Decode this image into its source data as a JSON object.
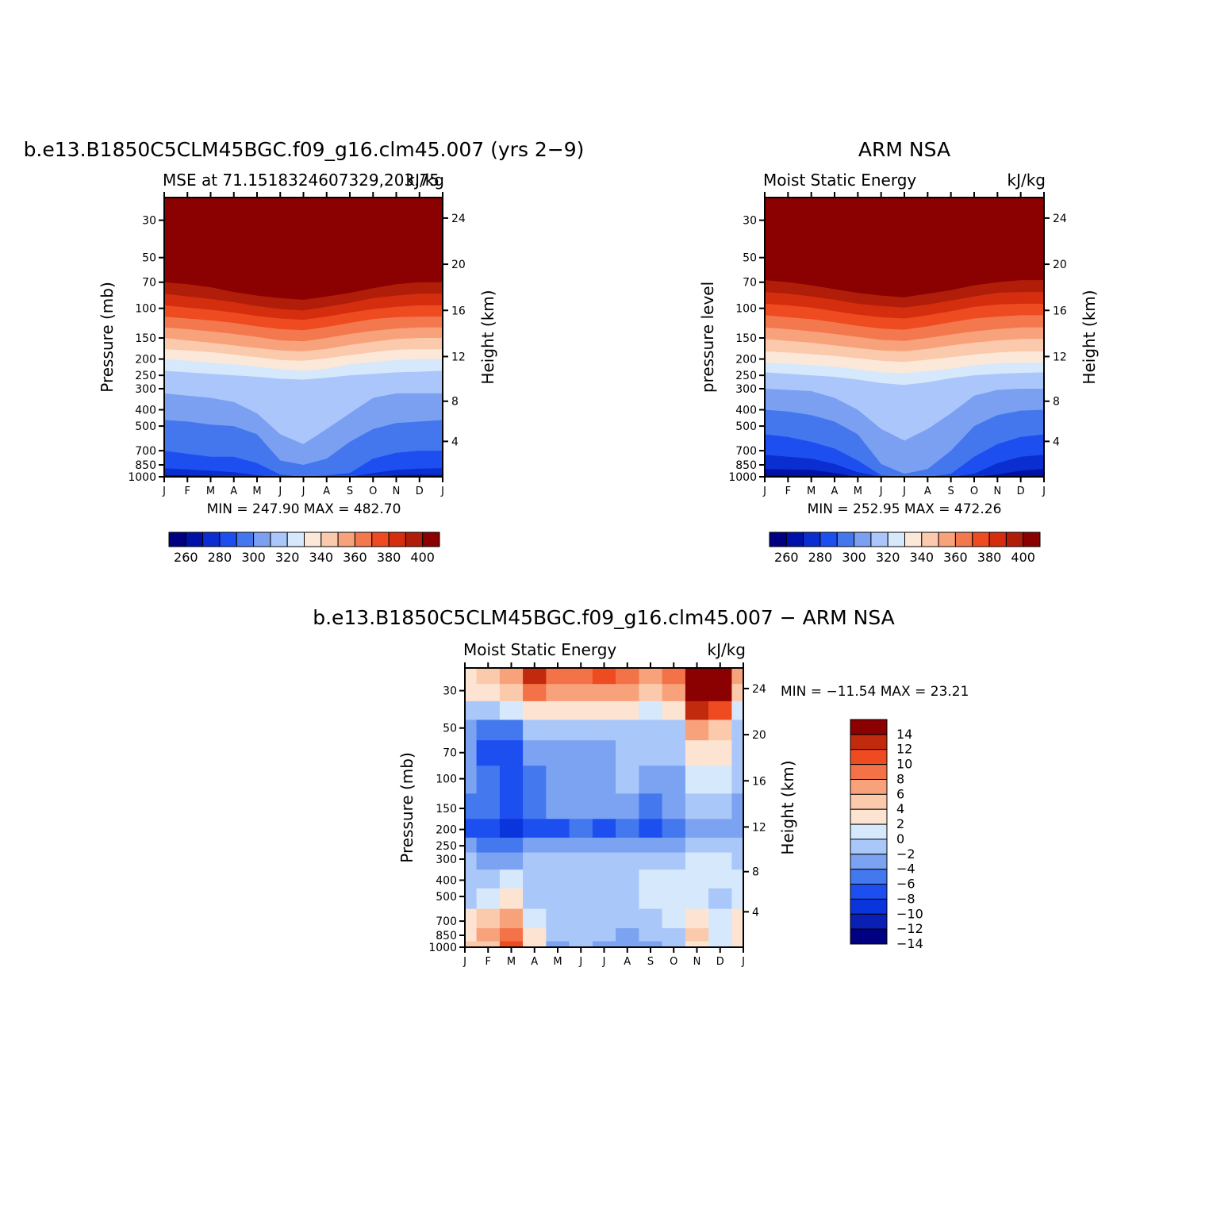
{
  "colors": {
    "mse_levels": [
      "#000080",
      "#0011aa",
      "#0a2ecf",
      "#1d4ff0",
      "#4477ee",
      "#7ba0f2",
      "#aac6fa",
      "#d6e8fb",
      "#fce8d8",
      "#fbc9ac",
      "#f8a27c",
      "#f4784e",
      "#ee4b21",
      "#d42e0e",
      "#b01e0a",
      "#8b0000"
    ],
    "diff_levels": [
      "#000080",
      "#0a1fb4",
      "#0a35dd",
      "#1d4ff0",
      "#4478ee",
      "#7ba3f2",
      "#aac7fa",
      "#d6e8fb",
      "#fde3d2",
      "#fbc9ac",
      "#f8a27c",
      "#f47247",
      "#ee4b21",
      "#c22a0e",
      "#8b0000"
    ]
  },
  "panels": {
    "model": {
      "title": "b.e13.B1850C5CLM45BGC.f09_g16.clm45.007 (yrs 2−9)",
      "left_label": "MSE at 71.1518324607329,203.75",
      "right_label": "kJ/kg",
      "y_label": "Pressure (mb)",
      "y2_label": "Height (km)",
      "minmax": "MIN = 247.90 MAX = 482.70"
    },
    "obs": {
      "title": "ARM NSA",
      "left_label": "Moist Static Energy",
      "right_label": "kJ/kg",
      "y_label": "pressure level",
      "y2_label": "Height (km)",
      "minmax": "MIN = 252.95 MAX = 472.26"
    },
    "diff": {
      "title": "b.e13.B1850C5CLM45BGC.f09_g16.clm45.007 − ARM NSA",
      "left_label": "Moist Static Energy",
      "right_label": "kJ/kg",
      "y_label": "Pressure (mb)",
      "y2_label": "Height (km)",
      "minmax": "MIN = −11.54 MAX =  23.21"
    }
  },
  "chart_data": [
    {
      "type": "heatmap",
      "title": "b.e13.B1850C5CLM45BGC.f09_g16.clm45.007 (yrs 2−9)",
      "subtitle": "MSE at 71.1518324607329,203.75",
      "units": "kJ/kg",
      "xlabel": "",
      "ylabel": "Pressure (mb)",
      "y2label": "Height (km)",
      "x": [
        "J",
        "F",
        "M",
        "A",
        "M",
        "J",
        "J",
        "A",
        "S",
        "O",
        "N",
        "D",
        "J"
      ],
      "y_ticks": [
        30,
        50,
        70,
        100,
        150,
        200,
        250,
        300,
        400,
        500,
        700,
        850,
        1000
      ],
      "y2_ticks": [
        24,
        20,
        16,
        12,
        8,
        4
      ],
      "y_scale": "log",
      "ylim": [
        1000,
        22
      ],
      "min": 247.9,
      "max": 482.7,
      "levels": [
        260,
        270,
        280,
        290,
        300,
        310,
        320,
        330,
        340,
        350,
        360,
        370,
        380,
        390,
        400
      ],
      "colorbar_labels": [
        "260",
        "280",
        "300",
        "320",
        "340",
        "360",
        "380",
        "400"
      ],
      "contour_pressure_by_month": {
        "260": [
          990,
          993,
          995,
          998,
          1001,
          1001,
          1001,
          1001,
          1001,
          1001,
          996,
          993,
          990
        ],
        "270": [
          975,
          980,
          985,
          990,
          1001,
          1001,
          1001,
          1001,
          1001,
          1001,
          980,
          970,
          975
        ],
        "280": [
          890,
          905,
          920,
          940,
          980,
          1001,
          1001,
          1001,
          1001,
          950,
          910,
          895,
          890
        ],
        "290": [
          700,
          730,
          760,
          760,
          830,
          970,
          1001,
          980,
          950,
          780,
          720,
          700,
          700
        ],
        "300": [
          460,
          470,
          490,
          500,
          560,
          800,
          850,
          780,
          620,
          520,
          480,
          470,
          460
        ],
        "310": [
          320,
          330,
          340,
          360,
          420,
          560,
          640,
          520,
          420,
          340,
          320,
          320,
          320
        ],
        "320": [
          235,
          240,
          245,
          250,
          255,
          262,
          265,
          258,
          250,
          245,
          240,
          238,
          235
        ],
        "330": [
          200,
          205,
          210,
          215,
          222,
          230,
          235,
          228,
          215,
          208,
          203,
          200,
          200
        ],
        "340": [
          175,
          178,
          182,
          188,
          195,
          203,
          205,
          198,
          190,
          182,
          176,
          175,
          175
        ],
        "350": [
          150,
          155,
          160,
          166,
          172,
          178,
          180,
          174,
          165,
          158,
          152,
          150,
          150
        ],
        "360": [
          130,
          133,
          137,
          142,
          148,
          155,
          157,
          150,
          142,
          136,
          132,
          130,
          130
        ],
        "370": [
          112,
          115,
          118,
          122,
          128,
          133,
          135,
          129,
          122,
          116,
          113,
          112,
          112
        ],
        "380": [
          96,
          99,
          102,
          106,
          111,
          115,
          117,
          112,
          106,
          101,
          98,
          96,
          96
        ],
        "390": [
          82,
          85,
          88,
          92,
          97,
          101,
          103,
          98,
          93,
          87,
          84,
          82,
          82
        ],
        "400": [
          70,
          72,
          75,
          80,
          84,
          87,
          89,
          85,
          81,
          76,
          72,
          70,
          70
        ]
      }
    },
    {
      "type": "heatmap",
      "title": "ARM NSA",
      "subtitle": "Moist Static Energy",
      "units": "kJ/kg",
      "xlabel": "",
      "ylabel": "pressure level",
      "y2label": "Height (km)",
      "x": [
        "J",
        "F",
        "M",
        "A",
        "M",
        "J",
        "J",
        "A",
        "S",
        "O",
        "N",
        "D",
        "J"
      ],
      "y_ticks": [
        30,
        50,
        70,
        100,
        150,
        200,
        250,
        300,
        400,
        500,
        700,
        850,
        1000
      ],
      "y2_ticks": [
        24,
        20,
        16,
        12,
        8,
        4
      ],
      "y_scale": "log",
      "ylim": [
        1000,
        22
      ],
      "min": 252.95,
      "max": 472.26,
      "levels": [
        260,
        270,
        280,
        290,
        300,
        310,
        320,
        330,
        340,
        350,
        360,
        370,
        380,
        390,
        400
      ],
      "colorbar_labels": [
        "260",
        "280",
        "300",
        "320",
        "340",
        "360",
        "380",
        "400"
      ],
      "contour_pressure_by_month": {
        "260": [
          985,
          985,
          990,
          1001,
          1001,
          1001,
          1001,
          1001,
          1001,
          1001,
          1001,
          990,
          985
        ],
        "270": [
          900,
          905,
          910,
          950,
          1001,
          1001,
          1001,
          1001,
          1001,
          1001,
          970,
          920,
          900
        ],
        "280": [
          740,
          760,
          780,
          840,
          940,
          1001,
          1001,
          1001,
          1001,
          960,
          830,
          760,
          740
        ],
        "290": [
          560,
          580,
          620,
          680,
          800,
          980,
          1001,
          1001,
          960,
          760,
          640,
          580,
          560
        ],
        "300": [
          400,
          410,
          430,
          470,
          560,
          840,
          960,
          900,
          700,
          500,
          430,
          405,
          400
        ],
        "310": [
          300,
          305,
          310,
          340,
          400,
          520,
          610,
          520,
          420,
          330,
          305,
          300,
          300
        ],
        "320": [
          240,
          245,
          250,
          255,
          265,
          278,
          285,
          275,
          260,
          250,
          245,
          242,
          240
        ],
        "330": [
          210,
          213,
          217,
          222,
          230,
          240,
          243,
          236,
          228,
          218,
          212,
          210,
          210
        ],
        "340": [
          180,
          183,
          187,
          192,
          198,
          205,
          208,
          202,
          195,
          188,
          183,
          180,
          180
        ],
        "350": [
          152,
          156,
          160,
          166,
          172,
          178,
          180,
          174,
          166,
          160,
          155,
          152,
          152
        ],
        "360": [
          130,
          133,
          137,
          142,
          148,
          154,
          156,
          150,
          143,
          137,
          133,
          130,
          130
        ],
        "370": [
          110,
          113,
          116,
          121,
          127,
          132,
          134,
          128,
          121,
          115,
          112,
          110,
          110
        ],
        "380": [
          94,
          96,
          99,
          104,
          109,
          113,
          115,
          110,
          104,
          98,
          95,
          94,
          94
        ],
        "390": [
          80,
          82,
          85,
          89,
          94,
          97,
          99,
          95,
          90,
          85,
          81,
          80,
          80
        ],
        "400": [
          68,
          70,
          73,
          77,
          81,
          84,
          86,
          82,
          78,
          73,
          70,
          68,
          68
        ]
      }
    },
    {
      "type": "heatmap",
      "title": "b.e13.B1850C5CLM45BGC.f09_g16.clm45.007 − ARM NSA",
      "subtitle": "Moist Static Energy",
      "units": "kJ/kg",
      "xlabel": "",
      "ylabel": "Pressure (mb)",
      "y2label": "Height (km)",
      "x": [
        "J",
        "F",
        "M",
        "A",
        "M",
        "J",
        "J",
        "A",
        "S",
        "O",
        "N",
        "D",
        "J"
      ],
      "y_ticks": [
        30,
        50,
        70,
        100,
        150,
        200,
        250,
        300,
        400,
        500,
        700,
        850,
        1000
      ],
      "y2_ticks": [
        24,
        20,
        16,
        12,
        8,
        4
      ],
      "y_scale": "log",
      "ylim": [
        1000,
        22
      ],
      "min": -11.54,
      "max": 23.21,
      "levels": [
        -14,
        -12,
        -10,
        -8,
        -6,
        -4,
        -2,
        0,
        2,
        4,
        6,
        8,
        10,
        12,
        14
      ],
      "colorbar_labels": [
        "14",
        "12",
        "10",
        "8",
        "6",
        "4",
        "2",
        "0",
        "−2",
        "−4",
        "−6",
        "−8",
        "−10",
        "−12",
        "−14"
      ],
      "grid_pressure": [
        25,
        30,
        40,
        50,
        70,
        100,
        150,
        200,
        250,
        300,
        400,
        500,
        700,
        850,
        1000
      ],
      "values_by_month": [
        [
          1,
          0,
          -3,
          -5,
          -6,
          -6,
          -7,
          -9,
          -6,
          -4,
          -3,
          -3,
          0,
          1,
          2
        ],
        [
          2,
          1,
          -3,
          -8,
          -9,
          -8,
          -8,
          -10,
          -7,
          -5,
          -3,
          -2,
          2,
          4,
          3
        ],
        [
          5,
          3,
          -2,
          -8,
          -10,
          -9,
          -9,
          -11,
          -7,
          -5,
          -2,
          1,
          4,
          6,
          8
        ],
        [
          10,
          6,
          1,
          -4,
          -6,
          -7,
          -7,
          -9,
          -6,
          -4,
          -3,
          -3,
          -2,
          0,
          1
        ],
        [
          6,
          4,
          0,
          -4,
          -5,
          -6,
          -6,
          -9,
          -6,
          -4,
          -3,
          -3,
          -4,
          -4,
          -5
        ],
        [
          6,
          4,
          0,
          -4,
          -5,
          -5,
          -6,
          -8,
          -6,
          -4,
          -3,
          -3,
          -3,
          -4,
          -4
        ],
        [
          8,
          5,
          0,
          -4,
          -5,
          -6,
          -6,
          -9,
          -6,
          -4,
          -3,
          -3,
          -3,
          -4,
          -5
        ],
        [
          6,
          4,
          0,
          -3,
          -3,
          -4,
          -6,
          -8,
          -6,
          -4,
          -3,
          -3,
          -3,
          -5,
          -6
        ],
        [
          5,
          3,
          -1,
          -3,
          -4,
          -5,
          -7,
          -10,
          -5,
          -3,
          -2,
          -2,
          -3,
          -4,
          -5
        ],
        [
          6,
          4,
          0,
          -3,
          -4,
          -5,
          -6,
          -8,
          -5,
          -3,
          -1,
          -1,
          -2,
          -3,
          -4
        ],
        [
          20,
          16,
          10,
          4,
          1,
          -1,
          -4,
          -6,
          -4,
          -2,
          -1,
          -1,
          1,
          3,
          1
        ],
        [
          18,
          14,
          8,
          3,
          0,
          -2,
          -4,
          -6,
          -4,
          -2,
          -1,
          -3,
          -2,
          -1,
          -1
        ],
        [
          5,
          3,
          -2,
          -3,
          -3,
          -4,
          -5,
          -6,
          -4,
          -3,
          -2,
          -2,
          0,
          1,
          0
        ]
      ]
    }
  ]
}
